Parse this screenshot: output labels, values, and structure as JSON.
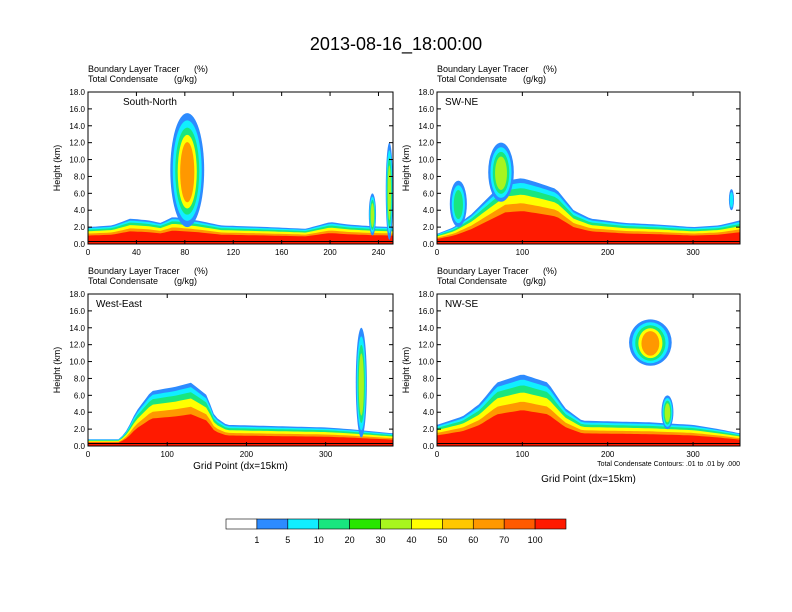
{
  "title": "2013-08-16_18:00:00",
  "chart_data": [
    {
      "type": "heatmap",
      "panel_label": "South-North",
      "field_title": "Boundary Layer Tracer",
      "field_units": "(%)",
      "contour_title": "Total Condensate",
      "contour_units": "(g/kg)",
      "ylabel": "Height (km)",
      "xlabel": "",
      "xlim": [
        0,
        252
      ],
      "ylim": [
        0,
        18
      ],
      "x_ticks": [
        "0",
        "40",
        "80",
        "120",
        "160",
        "200",
        "240"
      ],
      "x_tick_values": [
        0,
        40,
        80,
        120,
        160,
        200,
        240
      ],
      "y_ticks": [
        "0.0",
        "2.0",
        "4.0",
        "6.0",
        "8.0",
        "10.0",
        "12.0",
        "14.0",
        "16.0",
        "18.0"
      ],
      "boundary_layer_top_km": [
        [
          0,
          2.0
        ],
        [
          20,
          2.2
        ],
        [
          35,
          3.0
        ],
        [
          50,
          2.8
        ],
        [
          60,
          2.5
        ],
        [
          70,
          3.2
        ],
        [
          90,
          2.8
        ],
        [
          110,
          2.2
        ],
        [
          150,
          2.0
        ],
        [
          180,
          1.8
        ],
        [
          200,
          2.6
        ],
        [
          215,
          2.3
        ],
        [
          235,
          2.1
        ],
        [
          252,
          2.0
        ]
      ],
      "plumes": [
        {
          "x": 82,
          "width": 28,
          "bottom_km": 2.0,
          "top_km": 15.5,
          "max_pct": 70
        },
        {
          "x": 235,
          "width": 6,
          "bottom_km": 1.0,
          "top_km": 6.0,
          "max_pct": 40
        },
        {
          "x": 249,
          "width": 6,
          "bottom_km": 0.5,
          "top_km": 12.0,
          "max_pct": 40
        }
      ]
    },
    {
      "type": "heatmap",
      "panel_label": "SW-NE",
      "field_title": "Boundary Layer Tracer",
      "field_units": "(%)",
      "contour_title": "Total Condensate",
      "contour_units": "(g/kg)",
      "ylabel": "Height (km)",
      "xlabel": "",
      "xlim": [
        0,
        355
      ],
      "ylim": [
        0,
        18
      ],
      "x_ticks": [
        "0",
        "100",
        "200",
        "300"
      ],
      "x_tick_values": [
        0,
        100,
        200,
        300
      ],
      "y_ticks": [
        "0.0",
        "2.0",
        "4.0",
        "6.0",
        "8.0",
        "10.0",
        "12.0",
        "14.0",
        "16.0",
        "18.0"
      ],
      "boundary_layer_top_km": [
        [
          0,
          1.2
        ],
        [
          20,
          2.0
        ],
        [
          40,
          3.5
        ],
        [
          60,
          5.5
        ],
        [
          80,
          7.5
        ],
        [
          100,
          7.8
        ],
        [
          120,
          7.2
        ],
        [
          140,
          6.5
        ],
        [
          160,
          4.0
        ],
        [
          180,
          3.0
        ],
        [
          220,
          2.5
        ],
        [
          260,
          2.3
        ],
        [
          300,
          2.0
        ],
        [
          330,
          2.2
        ],
        [
          355,
          2.8
        ]
      ],
      "plumes": [
        {
          "x": 25,
          "width": 20,
          "bottom_km": 2.0,
          "top_km": 7.5,
          "max_pct": 20
        },
        {
          "x": 75,
          "width": 30,
          "bottom_km": 5.0,
          "top_km": 12.0,
          "max_pct": 30
        },
        {
          "x": 345,
          "width": 6,
          "bottom_km": 4.0,
          "top_km": 6.5,
          "max_pct": 5
        }
      ]
    },
    {
      "type": "heatmap",
      "panel_label": "West-East",
      "field_title": "Boundary Layer Tracer",
      "field_units": "(%)",
      "contour_title": "Total Condensate",
      "contour_units": "(g/kg)",
      "ylabel": "Height (km)",
      "xlabel": "Grid Point (dx=15km)",
      "xlim": [
        0,
        385
      ],
      "ylim": [
        0,
        18
      ],
      "x_ticks": [
        "0",
        "100",
        "200",
        "300"
      ],
      "x_tick_values": [
        0,
        100,
        200,
        300
      ],
      "y_ticks": [
        "0.0",
        "2.0",
        "4.0",
        "6.0",
        "8.0",
        "10.0",
        "12.0",
        "14.0",
        "16.0",
        "18.0"
      ],
      "boundary_layer_top_km": [
        [
          0,
          0.8
        ],
        [
          40,
          0.8
        ],
        [
          50,
          2.0
        ],
        [
          60,
          4.0
        ],
        [
          80,
          6.5
        ],
        [
          110,
          7.0
        ],
        [
          130,
          7.5
        ],
        [
          150,
          6.0
        ],
        [
          160,
          3.5
        ],
        [
          175,
          2.5
        ],
        [
          300,
          2.2
        ],
        [
          330,
          2.0
        ],
        [
          385,
          1.5
        ]
      ],
      "plumes": [
        {
          "x": 345,
          "width": 14,
          "bottom_km": 1.0,
          "top_km": 14.0,
          "max_pct": 40
        }
      ]
    },
    {
      "type": "heatmap",
      "panel_label": "NW-SE",
      "field_title": "Boundary Layer Tracer",
      "field_units": "(%)",
      "contour_title": "Total Condensate",
      "contour_units": "(g/kg)",
      "ylabel": "Height (km)",
      "xlabel": "Grid Point (dx=15km)",
      "footnote": "Total Condensate Contours: .01 to .01 by .000",
      "xlim": [
        0,
        355
      ],
      "ylim": [
        0,
        18
      ],
      "x_ticks": [
        "0",
        "100",
        "200",
        "300"
      ],
      "x_tick_values": [
        0,
        100,
        200,
        300
      ],
      "y_ticks": [
        "0.0",
        "2.0",
        "4.0",
        "6.0",
        "8.0",
        "10.0",
        "12.0",
        "14.0",
        "16.0",
        "18.0"
      ],
      "boundary_layer_top_km": [
        [
          0,
          2.5
        ],
        [
          30,
          3.5
        ],
        [
          50,
          5.0
        ],
        [
          70,
          7.5
        ],
        [
          100,
          8.5
        ],
        [
          130,
          7.5
        ],
        [
          150,
          4.5
        ],
        [
          170,
          3.0
        ],
        [
          250,
          2.8
        ],
        [
          300,
          2.5
        ],
        [
          330,
          2.0
        ],
        [
          355,
          1.5
        ]
      ],
      "plumes": [
        {
          "x": 250,
          "width": 50,
          "bottom_km": 9.5,
          "top_km": 15.0,
          "max_pct": 60
        },
        {
          "x": 270,
          "width": 14,
          "bottom_km": 2.0,
          "top_km": 6.0,
          "max_pct": 30
        }
      ]
    }
  ],
  "colorbar": {
    "labels": [
      "1",
      "5",
      "10",
      "20",
      "30",
      "40",
      "50",
      "60",
      "70",
      "100"
    ],
    "colors": [
      "#ffffff",
      "#2d8bff",
      "#11eeff",
      "#19e67f",
      "#27e600",
      "#a8f51e",
      "#ffff00",
      "#ffc800",
      "#ff9800",
      "#ff5a00",
      "#ff1a00"
    ]
  }
}
